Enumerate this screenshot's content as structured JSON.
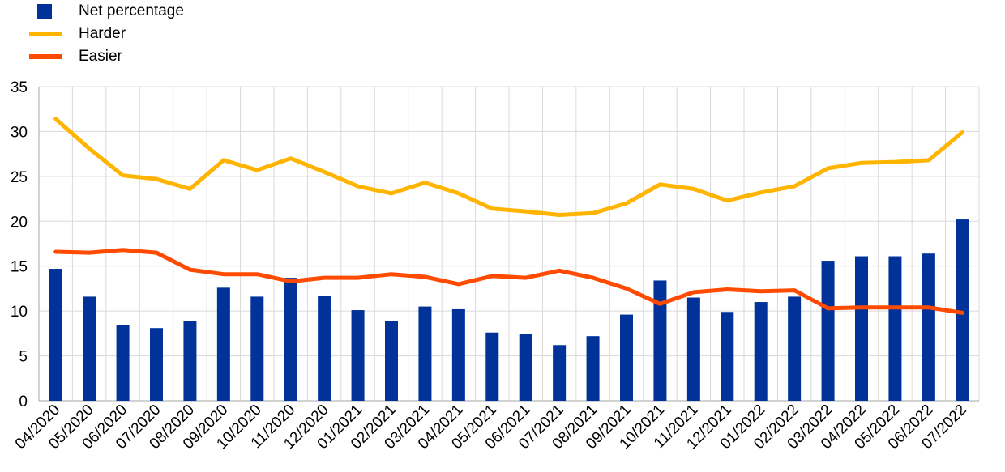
{
  "legend": {
    "items": [
      {
        "label": "Net percentage",
        "color": "#003299"
      },
      {
        "label": "Harder",
        "color": "#FFB400"
      },
      {
        "label": "Easier",
        "color": "#FF4B00"
      }
    ]
  },
  "chart_data": {
    "type": "bar",
    "categories": [
      "04/2020",
      "05/2020",
      "06/2020",
      "07/2020",
      "08/2020",
      "09/2020",
      "10/2020",
      "11/2020",
      "12/2020",
      "01/2021",
      "02/2021",
      "03/2021",
      "04/2021",
      "05/2021",
      "06/2021",
      "07/2021",
      "08/2021",
      "09/2021",
      "10/2021",
      "11/2021",
      "12/2021",
      "01/2022",
      "02/2022",
      "03/2022",
      "04/2022",
      "05/2022",
      "06/2022",
      "07/2022"
    ],
    "series": [
      {
        "name": "Net percentage",
        "type": "bar",
        "color": "#003299",
        "values": [
          14.7,
          11.6,
          8.4,
          8.1,
          8.9,
          12.6,
          11.6,
          13.7,
          11.7,
          10.1,
          8.9,
          10.5,
          10.2,
          7.6,
          7.4,
          6.2,
          7.2,
          9.6,
          13.4,
          11.5,
          9.9,
          11.0,
          11.6,
          15.6,
          16.1,
          16.1,
          16.4,
          20.2
        ]
      },
      {
        "name": "Harder",
        "type": "line",
        "color": "#FFB400",
        "values": [
          31.4,
          28.1,
          25.1,
          24.7,
          23.6,
          26.8,
          25.7,
          27.0,
          25.5,
          23.9,
          23.1,
          24.3,
          23.1,
          21.4,
          21.1,
          20.7,
          20.9,
          22.0,
          24.1,
          23.6,
          22.3,
          23.2,
          23.9,
          25.9,
          26.5,
          26.6,
          26.8,
          29.9
        ]
      },
      {
        "name": "Easier",
        "type": "line",
        "color": "#FF4B00",
        "values": [
          16.6,
          16.5,
          16.8,
          16.5,
          14.6,
          14.1,
          14.1,
          13.3,
          13.7,
          13.7,
          14.1,
          13.8,
          13.0,
          13.9,
          13.7,
          14.5,
          13.7,
          12.5,
          10.8,
          12.1,
          12.4,
          12.2,
          12.3,
          10.3,
          10.4,
          10.4,
          10.4,
          9.8
        ]
      }
    ],
    "yticks": [
      0,
      5,
      10,
      15,
      20,
      25,
      30,
      35
    ],
    "ylim": [
      0,
      35
    ],
    "grid": true,
    "legend_position": "top-left"
  }
}
